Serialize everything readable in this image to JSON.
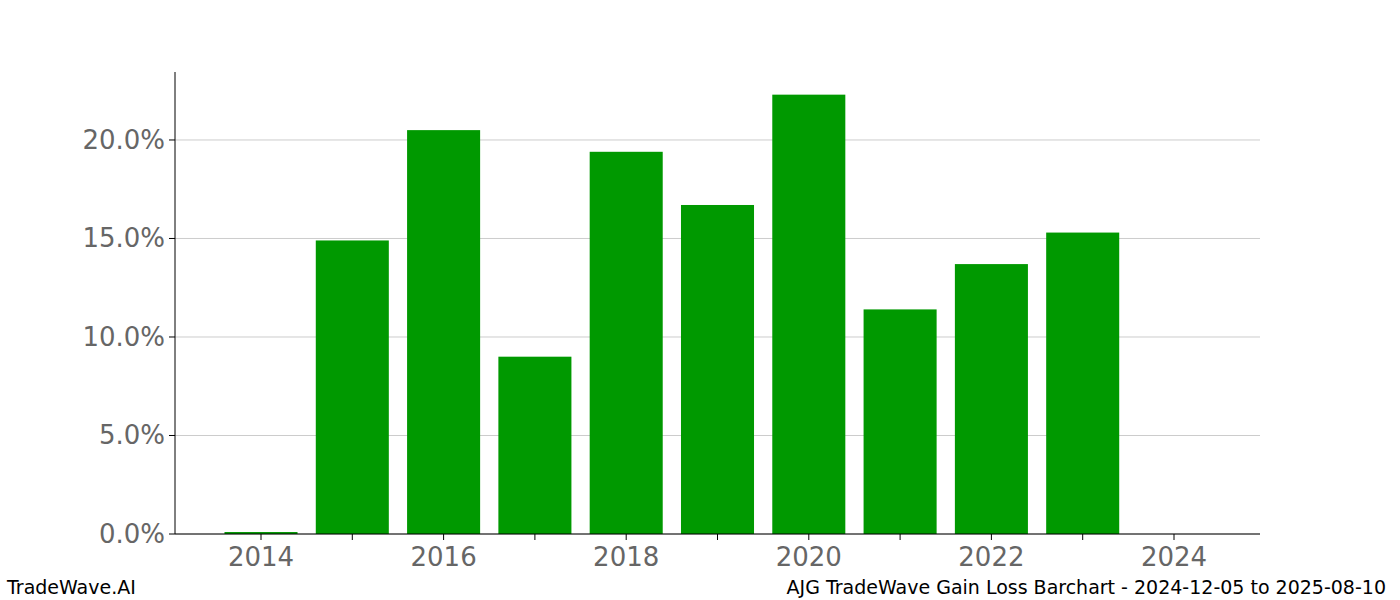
{
  "chart_data": {
    "type": "bar",
    "title": "AJG TradeWave Gain Loss Barchart - 2024-12-05 to 2025-08-10",
    "source": "TradeWave.AI",
    "categories": [
      "2014",
      null,
      "2016",
      null,
      "2018",
      null,
      "2020",
      null,
      "2022",
      null,
      "2024"
    ],
    "values": [
      0.1,
      14.9,
      20.5,
      9.0,
      19.4,
      16.7,
      22.3,
      11.4,
      13.7,
      15.3,
      null
    ],
    "color": "#009900",
    "ylim": [
      0,
      23.45
    ],
    "yticks": [
      {
        "value": 0,
        "label": "0.0%"
      },
      {
        "value": 5,
        "label": "5.0%"
      },
      {
        "value": 10,
        "label": "10.0%"
      },
      {
        "value": 15,
        "label": "15.0%"
      },
      {
        "value": 20,
        "label": "20.0%"
      }
    ],
    "grid": true
  }
}
